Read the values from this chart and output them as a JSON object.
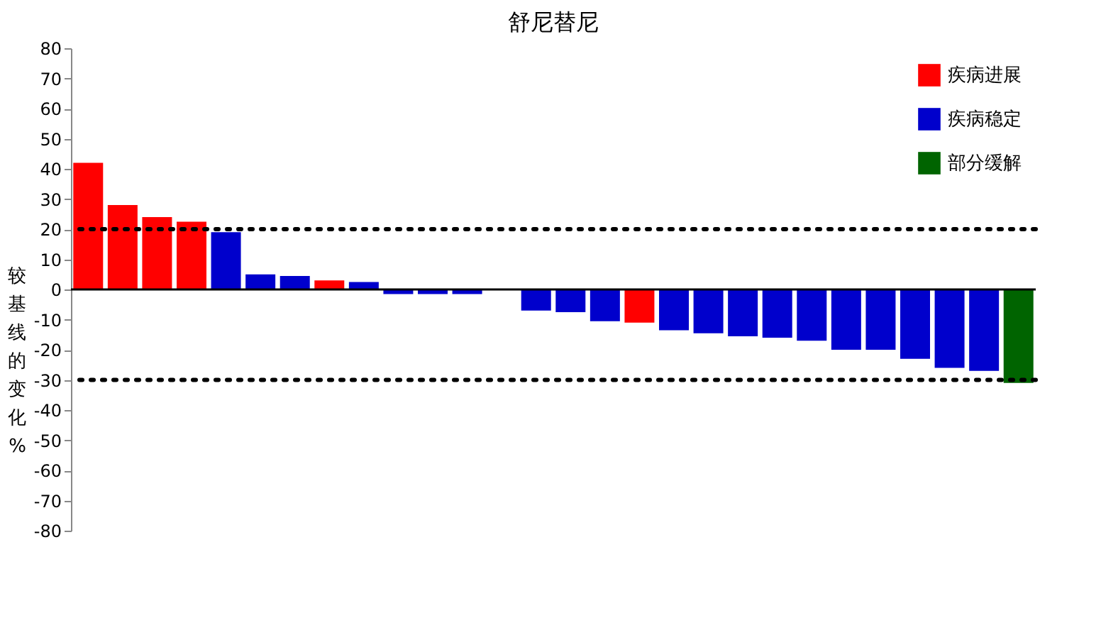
{
  "chart_data": {
    "type": "bar",
    "title": "舒尼替尼",
    "ylabel": "较基线的变化%",
    "categories": [
      null,
      null,
      null,
      null,
      null,
      null,
      null,
      null,
      null,
      null,
      null,
      null,
      null,
      null,
      null,
      null,
      null,
      null,
      null,
      null,
      null,
      null,
      null,
      null,
      null,
      null,
      null,
      null
    ],
    "series": [
      {
        "name": "疾病进展",
        "color": "#ff0000",
        "values": [
          42,
          28,
          24,
          22.5,
          null,
          null,
          null,
          3,
          null,
          null,
          null,
          null,
          null,
          null,
          null,
          null,
          -11,
          null,
          null,
          null,
          null,
          null,
          null,
          null,
          null,
          null,
          null,
          null
        ]
      },
      {
        "name": "疾病稳定",
        "color": "#0000cc",
        "values": [
          null,
          null,
          null,
          null,
          19,
          5,
          4.5,
          null,
          2.5,
          -1.5,
          -1.5,
          -1.5,
          null,
          -7,
          -7.5,
          -10.5,
          null,
          -13.5,
          -14.5,
          -15.5,
          -16,
          -17,
          -20,
          -20,
          -23,
          -26,
          -27,
          null
        ]
      },
      {
        "name": "部分缓解",
        "color": "#006400",
        "values": [
          null,
          null,
          null,
          null,
          null,
          null,
          null,
          null,
          null,
          null,
          null,
          null,
          null,
          null,
          null,
          null,
          null,
          null,
          null,
          null,
          null,
          null,
          null,
          null,
          null,
          null,
          null,
          -31
        ]
      }
    ],
    "ylim": [
      -80,
      80
    ],
    "yticks": [
      -80,
      -70,
      -60,
      -50,
      -40,
      -30,
      -20,
      -10,
      0,
      10,
      20,
      30,
      40,
      50,
      60,
      70,
      80
    ],
    "ref_lines": [
      {
        "axis": "y",
        "value": 20,
        "line_style": "dotted"
      },
      {
        "axis": "y",
        "value": -30,
        "line_style": "dotted"
      }
    ],
    "legend": "top right",
    "grid": false,
    "tick_labels": "y"
  }
}
